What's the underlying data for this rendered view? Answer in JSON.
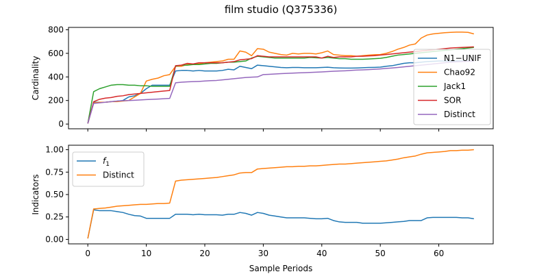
{
  "title": "film studio (Q375336)",
  "colors": {
    "blue": "#1f77b4",
    "orange": "#ff7f0e",
    "green": "#2ca02c",
    "red": "#d62728",
    "purple": "#9467bd"
  },
  "chart_data": [
    {
      "type": "line",
      "ylabel": "Cardinality",
      "xlabel": "",
      "xlim": [
        -3.3,
        69.3
      ],
      "ylim": [
        -40,
        820
      ],
      "yticks": [
        0,
        200,
        400,
        600,
        800
      ],
      "xticks": [
        0,
        10,
        20,
        30,
        40,
        50,
        60
      ],
      "legend_position": "right",
      "series": [
        {
          "name": "N1−UNIF",
          "color": "blue",
          "values": [
            5,
            185,
            185,
            185,
            190,
            195,
            200,
            230,
            240,
            260,
            300,
            330,
            330,
            330,
            330,
            450,
            455,
            455,
            450,
            455,
            450,
            450,
            450,
            455,
            465,
            460,
            490,
            480,
            470,
            500,
            495,
            490,
            485,
            480,
            478,
            480,
            480,
            478,
            478,
            478,
            480,
            482,
            478,
            476,
            475,
            475,
            476,
            478,
            480,
            481,
            483,
            490,
            495,
            505,
            515,
            520,
            520,
            525,
            530,
            532,
            535,
            535,
            535,
            535,
            535,
            535,
            535
          ]
        },
        {
          "name": "Chao92",
          "color": "orange",
          "values": [
            5,
            180,
            185,
            185,
            190,
            190,
            195,
            200,
            230,
            260,
            365,
            380,
            390,
            410,
            420,
            490,
            490,
            505,
            510,
            510,
            520,
            525,
            530,
            535,
            550,
            550,
            620,
            610,
            580,
            640,
            635,
            610,
            600,
            590,
            585,
            600,
            595,
            600,
            600,
            595,
            605,
            620,
            590,
            585,
            580,
            580,
            575,
            580,
            585,
            588,
            590,
            600,
            615,
            635,
            650,
            670,
            680,
            730,
            755,
            765,
            770,
            775,
            778,
            780,
            780,
            778,
            765
          ]
        },
        {
          "name": "Jack1",
          "color": "green",
          "values": [
            5,
            275,
            300,
            315,
            330,
            335,
            335,
            330,
            330,
            325,
            325,
            320,
            320,
            320,
            320,
            490,
            500,
            500,
            505,
            505,
            510,
            515,
            515,
            520,
            525,
            525,
            530,
            535,
            560,
            575,
            570,
            565,
            560,
            560,
            560,
            560,
            560,
            560,
            565,
            562,
            560,
            565,
            560,
            555,
            555,
            550,
            550,
            550,
            552,
            555,
            558,
            565,
            575,
            585,
            590,
            595,
            600,
            605,
            610,
            615,
            620,
            625,
            630,
            635,
            640,
            645,
            650
          ]
        },
        {
          "name": "SOR",
          "color": "red",
          "values": [
            5,
            190,
            210,
            220,
            225,
            235,
            240,
            250,
            255,
            260,
            265,
            270,
            275,
            280,
            285,
            495,
            500,
            515,
            510,
            520,
            520,
            520,
            520,
            520,
            525,
            530,
            545,
            550,
            555,
            580,
            575,
            570,
            570,
            570,
            570,
            570,
            570,
            570,
            570,
            570,
            560,
            575,
            565,
            570,
            570,
            570,
            575,
            575,
            578,
            580,
            585,
            590,
            595,
            600,
            605,
            610,
            615,
            620,
            625,
            630,
            635,
            640,
            645,
            648,
            650,
            652,
            655
          ]
        },
        {
          "name": "Distinct",
          "color": "purple",
          "values": [
            5,
            175,
            180,
            185,
            190,
            195,
            198,
            200,
            202,
            205,
            208,
            210,
            212,
            215,
            218,
            350,
            355,
            358,
            360,
            362,
            365,
            368,
            370,
            375,
            380,
            385,
            390,
            395,
            398,
            400,
            420,
            422,
            425,
            428,
            430,
            432,
            434,
            436,
            438,
            440,
            442,
            445,
            448,
            450,
            452,
            455,
            458,
            460,
            462,
            465,
            468,
            472,
            476,
            480,
            485,
            490,
            495,
            500,
            505,
            510,
            515,
            520,
            525,
            528,
            530,
            532,
            535
          ]
        }
      ]
    },
    {
      "type": "line",
      "ylabel": "Indicators",
      "xlabel": "Sample Periods",
      "xlim": [
        -3.3,
        69.3
      ],
      "ylim": [
        -0.05,
        1.05
      ],
      "yticks": [
        0.0,
        0.25,
        0.5,
        0.75,
        1.0
      ],
      "ytick_labels": [
        "0.00",
        "0.25",
        "0.50",
        "0.75",
        "1.00"
      ],
      "xticks": [
        0,
        10,
        20,
        30,
        40,
        50,
        60
      ],
      "legend_position": "top-left",
      "series": [
        {
          "name": "f1",
          "color": "blue",
          "values": [
            0.01,
            0.33,
            0.32,
            0.32,
            0.32,
            0.31,
            0.3,
            0.28,
            0.265,
            0.26,
            0.235,
            0.235,
            0.235,
            0.235,
            0.235,
            0.28,
            0.28,
            0.28,
            0.275,
            0.28,
            0.275,
            0.275,
            0.275,
            0.27,
            0.28,
            0.28,
            0.3,
            0.29,
            0.27,
            0.3,
            0.29,
            0.27,
            0.26,
            0.25,
            0.24,
            0.24,
            0.24,
            0.24,
            0.235,
            0.23,
            0.23,
            0.235,
            0.21,
            0.195,
            0.19,
            0.19,
            0.19,
            0.18,
            0.18,
            0.18,
            0.18,
            0.185,
            0.19,
            0.195,
            0.2,
            0.21,
            0.21,
            0.21,
            0.24,
            0.245,
            0.245,
            0.245,
            0.245,
            0.245,
            0.24,
            0.24,
            0.23
          ]
        },
        {
          "name": "Distinct",
          "color": "orange",
          "values": [
            0.01,
            0.34,
            0.345,
            0.35,
            0.36,
            0.37,
            0.375,
            0.38,
            0.385,
            0.39,
            0.39,
            0.395,
            0.4,
            0.4,
            0.405,
            0.65,
            0.66,
            0.665,
            0.67,
            0.675,
            0.68,
            0.685,
            0.69,
            0.7,
            0.71,
            0.72,
            0.74,
            0.745,
            0.745,
            0.785,
            0.79,
            0.795,
            0.8,
            0.805,
            0.81,
            0.81,
            0.815,
            0.815,
            0.82,
            0.82,
            0.825,
            0.83,
            0.835,
            0.84,
            0.84,
            0.845,
            0.85,
            0.855,
            0.86,
            0.865,
            0.87,
            0.875,
            0.885,
            0.895,
            0.91,
            0.92,
            0.93,
            0.95,
            0.965,
            0.97,
            0.975,
            0.98,
            0.99,
            0.99,
            0.995,
            0.995,
            1.0
          ]
        }
      ]
    }
  ]
}
